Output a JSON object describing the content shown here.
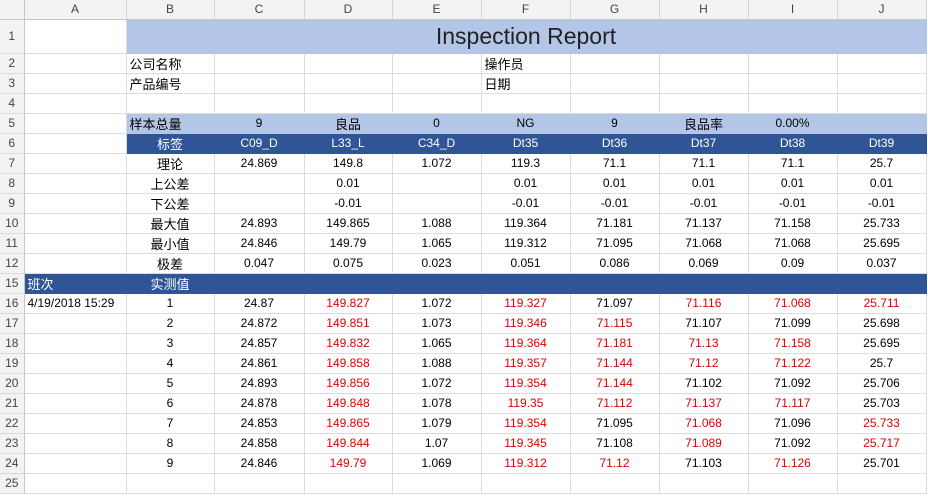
{
  "columns": [
    "A",
    "B",
    "C",
    "D",
    "E",
    "F",
    "G",
    "H",
    "I",
    "J"
  ],
  "title": "Inspection Report",
  "info": {
    "company_label": "公司名称",
    "operator_label": "操作员",
    "product_label": "产品编号",
    "date_label": "日期"
  },
  "summary": {
    "total_label": "样本总量",
    "total_value": "9",
    "good_label": "良品",
    "good_value": "0",
    "ng_label": "NG",
    "ng_value": "9",
    "rate_label": "良品率",
    "rate_value": "0.00%"
  },
  "spec": {
    "header_label": "标签",
    "headers": [
      "C09_D",
      "L33_L",
      "C34_D",
      "Dt35",
      "Dt36",
      "Dt37",
      "Dt38",
      "Dt39"
    ],
    "rows": [
      {
        "row_num": "7",
        "label": "理论",
        "values": [
          "24.869",
          "149.8",
          "1.072",
          "119.3",
          "71.1",
          "71.1",
          "71.1",
          "25.7"
        ]
      },
      {
        "row_num": "8",
        "label": "上公差",
        "values": [
          "",
          "0.01",
          "",
          "0.01",
          "0.01",
          "0.01",
          "0.01",
          "0.01"
        ]
      },
      {
        "row_num": "9",
        "label": "下公差",
        "values": [
          "",
          "-0.01",
          "",
          "-0.01",
          "-0.01",
          "-0.01",
          "-0.01",
          "-0.01"
        ]
      },
      {
        "row_num": "10",
        "label": "最大值",
        "values": [
          "24.893",
          "149.865",
          "1.088",
          "119.364",
          "71.181",
          "71.137",
          "71.158",
          "25.733"
        ]
      },
      {
        "row_num": "11",
        "label": "最小值",
        "values": [
          "24.846",
          "149.79",
          "1.065",
          "119.312",
          "71.095",
          "71.068",
          "71.068",
          "25.695"
        ]
      },
      {
        "row_num": "12",
        "label": "极差",
        "values": [
          "0.047",
          "0.075",
          "0.023",
          "0.051",
          "0.086",
          "0.069",
          "0.09",
          "0.037"
        ]
      }
    ]
  },
  "measure_header": {
    "shift_label": "班次",
    "measured_label": "实测值"
  },
  "measurements": [
    {
      "row_num": "16",
      "shift": "4/19/2018 15:29",
      "index": "1",
      "values": [
        "24.87",
        "149.827",
        "1.072",
        "119.327",
        "71.097",
        "71.116",
        "71.068",
        "25.711"
      ],
      "out": [
        false,
        true,
        false,
        true,
        false,
        true,
        true,
        true
      ]
    },
    {
      "row_num": "17",
      "shift": "",
      "index": "2",
      "values": [
        "24.872",
        "149.851",
        "1.073",
        "119.346",
        "71.115",
        "71.107",
        "71.099",
        "25.698"
      ],
      "out": [
        false,
        true,
        false,
        true,
        true,
        false,
        false,
        false
      ]
    },
    {
      "row_num": "18",
      "shift": "",
      "index": "3",
      "values": [
        "24.857",
        "149.832",
        "1.065",
        "119.364",
        "71.181",
        "71.13",
        "71.158",
        "25.695"
      ],
      "out": [
        false,
        true,
        false,
        true,
        true,
        true,
        true,
        false
      ]
    },
    {
      "row_num": "19",
      "shift": "",
      "index": "4",
      "values": [
        "24.861",
        "149.858",
        "1.088",
        "119.357",
        "71.144",
        "71.12",
        "71.122",
        "25.7"
      ],
      "out": [
        false,
        true,
        false,
        true,
        true,
        true,
        true,
        false
      ]
    },
    {
      "row_num": "20",
      "shift": "",
      "index": "5",
      "values": [
        "24.893",
        "149.856",
        "1.072",
        "119.354",
        "71.144",
        "71.102",
        "71.092",
        "25.706"
      ],
      "out": [
        false,
        true,
        false,
        true,
        true,
        false,
        false,
        false
      ]
    },
    {
      "row_num": "21",
      "shift": "",
      "index": "6",
      "values": [
        "24.878",
        "149.848",
        "1.078",
        "119.35",
        "71.112",
        "71.137",
        "71.117",
        "25.703"
      ],
      "out": [
        false,
        true,
        false,
        true,
        true,
        true,
        true,
        false
      ]
    },
    {
      "row_num": "22",
      "shift": "",
      "index": "7",
      "values": [
        "24.853",
        "149.865",
        "1.079",
        "119.354",
        "71.095",
        "71.068",
        "71.096",
        "25.733"
      ],
      "out": [
        false,
        true,
        false,
        true,
        false,
        true,
        false,
        true
      ]
    },
    {
      "row_num": "23",
      "shift": "",
      "index": "8",
      "values": [
        "24.858",
        "149.844",
        "1.07",
        "119.345",
        "71.108",
        "71.089",
        "71.092",
        "25.717"
      ],
      "out": [
        false,
        true,
        false,
        true,
        false,
        true,
        false,
        true
      ]
    },
    {
      "row_num": "24",
      "shift": "",
      "index": "9",
      "values": [
        "24.846",
        "149.79",
        "1.069",
        "119.312",
        "71.12",
        "71.103",
        "71.126",
        "25.701"
      ],
      "out": [
        false,
        true,
        false,
        true,
        true,
        false,
        true,
        false
      ]
    }
  ],
  "row_numbers": {
    "r1": "1",
    "r2": "2",
    "r3": "3",
    "r4": "4",
    "r5": "5",
    "r6": "6",
    "r15": "15",
    "r25": "25"
  },
  "colors": {
    "header_light": "#b4c6e7",
    "header_dark": "#2f5597",
    "out_of_tolerance": "#e00000"
  }
}
